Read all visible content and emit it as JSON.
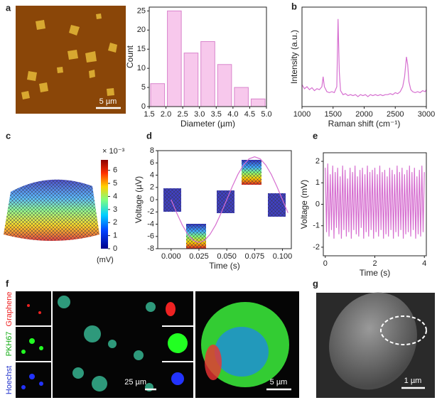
{
  "panel_labels": [
    "a",
    "b",
    "c",
    "d",
    "e",
    "f",
    "g"
  ],
  "afm": {
    "scale_bar": "5 µm"
  },
  "colorbar": {
    "title": "× 10⁻³",
    "lim": [
      0,
      6.8
    ],
    "ticks": [
      0,
      1,
      2,
      3,
      4,
      5,
      6
    ],
    "unit": "(mV)"
  },
  "microscopy": {
    "channels": [
      "Graphene",
      "PKH67",
      "Hoechst"
    ],
    "scale_bars": [
      "25 µm",
      "5 µm"
    ]
  },
  "sem": {
    "scale_bar": "1 µm"
  },
  "chart_data": [
    {
      "type": "histogram",
      "x_label": "Diameter (µm)",
      "y_label": "Count",
      "color": "#f7c8ec",
      "edge_color": "#d985cc",
      "bins": [
        1.5,
        2.0,
        2.5,
        3.0,
        3.5,
        4.0,
        4.5,
        5.0
      ],
      "values": [
        6,
        25,
        14,
        17,
        11,
        5,
        2
      ],
      "xlim": [
        1.5,
        5.0
      ],
      "ylim": [
        0,
        26
      ],
      "xticks": [
        1.5,
        {
          "value": 2,
          "label": "2.0"
        },
        2.5,
        {
          "value": 3,
          "label": "3.0"
        },
        3.5,
        {
          "value": 4,
          "label": "4.0"
        },
        4.5,
        {
          "value": 5,
          "label": "5.0"
        }
      ],
      "yticks": [
        0,
        5,
        10,
        15,
        20,
        25
      ]
    },
    {
      "type": "line",
      "x_label": "Raman shift (cm⁻¹)",
      "y_label": "Intensity (a.u.)",
      "color": "#d66fd0",
      "x": [
        1000,
        1040,
        1080,
        1120,
        1160,
        1200,
        1240,
        1280,
        1320,
        1340,
        1360,
        1400,
        1440,
        1480,
        1520,
        1560,
        1580,
        1600,
        1620,
        1660,
        1700,
        1740,
        1780,
        1820,
        1860,
        1900,
        1940,
        1980,
        2020,
        2060,
        2100,
        2140,
        2180,
        2220,
        2260,
        2300,
        2340,
        2380,
        2420,
        2460,
        2500,
        2540,
        2580,
        2620,
        2650,
        2680,
        2700,
        2720,
        2750,
        2780,
        2820,
        2860,
        2900,
        2940,
        2980,
        3000
      ],
      "values": [
        0.22,
        0.18,
        0.2,
        0.17,
        0.19,
        0.16,
        0.18,
        0.17,
        0.2,
        0.3,
        0.2,
        0.15,
        0.14,
        0.15,
        0.14,
        0.2,
        0.88,
        0.35,
        0.16,
        0.12,
        0.13,
        0.11,
        0.12,
        0.11,
        0.12,
        0.1,
        0.12,
        0.11,
        0.12,
        0.1,
        0.12,
        0.11,
        0.12,
        0.11,
        0.12,
        0.11,
        0.12,
        0.12,
        0.13,
        0.12,
        0.14,
        0.13,
        0.15,
        0.2,
        0.3,
        0.5,
        0.42,
        0.25,
        0.17,
        0.15,
        0.14,
        0.15,
        0.14,
        0.16,
        0.15,
        0.17
      ],
      "xlim": [
        1000,
        3000
      ],
      "ylim": [
        0,
        1
      ],
      "xticks": [
        1000,
        1500,
        2000,
        2500,
        3000
      ]
    },
    {
      "type": "line",
      "x_label": "Time (s)",
      "y_label": "Voltage (µV)",
      "color": "#d66fd0",
      "x": [
        0,
        0.005,
        0.01,
        0.015,
        0.02,
        0.025,
        0.03,
        0.035,
        0.04,
        0.045,
        0.05,
        0.055,
        0.06,
        0.065,
        0.07,
        0.075,
        0.08,
        0.085,
        0.09,
        0.095,
        0.1,
        0.105
      ],
      "values": [
        0,
        -2.16,
        -4.12,
        -5.66,
        -6.66,
        -7,
        -6.66,
        -5.66,
        -4.12,
        -2.16,
        0,
        2.16,
        4.12,
        5.66,
        6.66,
        7,
        6.66,
        5.66,
        4.12,
        2.16,
        0,
        -2.16
      ],
      "xlim": [
        -0.012,
        0.108
      ],
      "ylim": [
        -8,
        8
      ],
      "xticks": [
        {
          "value": 0,
          "label": "0.000"
        },
        0.025,
        {
          "value": 0.05,
          "label": "0.050"
        },
        0.075,
        {
          "value": 0.1,
          "label": "0.100"
        }
      ],
      "yticks": [
        -8,
        -6,
        -4,
        -2,
        0,
        2,
        4,
        6,
        8
      ]
    },
    {
      "type": "line",
      "x_label": "Time (s)",
      "y_label": "Voltage (mV)",
      "color": "#d66fd0",
      "x": [
        0,
        0.05,
        0.1,
        0.15,
        0.2,
        0.25,
        0.3,
        0.35,
        0.4,
        0.45,
        0.5,
        0.55,
        0.6,
        0.65,
        0.7,
        0.75,
        0.8,
        0.85,
        0.9,
        0.95,
        1,
        1.05,
        1.1,
        1.15,
        1.2,
        1.25,
        1.3,
        1.35,
        1.4,
        1.45,
        1.5,
        1.55,
        1.6,
        1.65,
        1.7,
        1.75,
        1.8,
        1.85,
        1.9,
        1.95,
        2,
        2.05,
        2.1,
        2.15,
        2.2,
        2.25,
        2.3,
        2.35,
        2.4,
        2.45,
        2.5,
        2.55,
        2.6,
        2.65,
        2.7,
        2.75,
        2.8,
        2.85,
        2.9,
        2.95,
        3,
        3.05,
        3.1,
        3.15,
        3.2,
        3.25,
        3.3,
        3.35,
        3.4,
        3.45,
        3.5,
        3.55,
        3.6,
        3.65,
        3.7,
        3.75,
        3.8,
        3.85,
        3.9,
        3.95,
        4
      ],
      "values": [
        1.7,
        -1.3,
        1.9,
        -1.5,
        1.4,
        -1.2,
        1.8,
        -1.6,
        1.5,
        -1.1,
        1.7,
        -1.4,
        1.3,
        -1.6,
        1.8,
        -1.2,
        1.6,
        -1.5,
        1.2,
        -1.3,
        1.7,
        -1.6,
        1.5,
        -1.2,
        1.8,
        -1.4,
        1.3,
        -1.5,
        1.6,
        -1.1,
        1.7,
        -1.6,
        1.4,
        -1.3,
        1.8,
        -1.5,
        1.5,
        -1.2,
        1.6,
        -1.6,
        1.7,
        -1.3,
        1.4,
        -1.5,
        1.8,
        -1.2,
        1.5,
        -1.6,
        1.6,
        -1.4,
        1.3,
        -1.5,
        1.7,
        -1.2,
        1.6,
        -1.6,
        1.4,
        -1.3,
        1.8,
        -1.5,
        1.5,
        -1.2,
        1.7,
        -1.6,
        1.4,
        -1.4,
        1.6,
        -1.3,
        1.8,
        -1.5,
        1.5,
        -1.2,
        1.7,
        -1.6,
        1.3,
        -1.4,
        1.6,
        -1.5,
        1.8,
        -1.3,
        1.5
      ],
      "xlim": [
        -0.08,
        4.08
      ],
      "ylim": [
        -2.4,
        2.4
      ],
      "xticks": [
        0,
        2,
        4
      ],
      "yticks": [
        -2,
        -1,
        0,
        1,
        2
      ]
    }
  ]
}
